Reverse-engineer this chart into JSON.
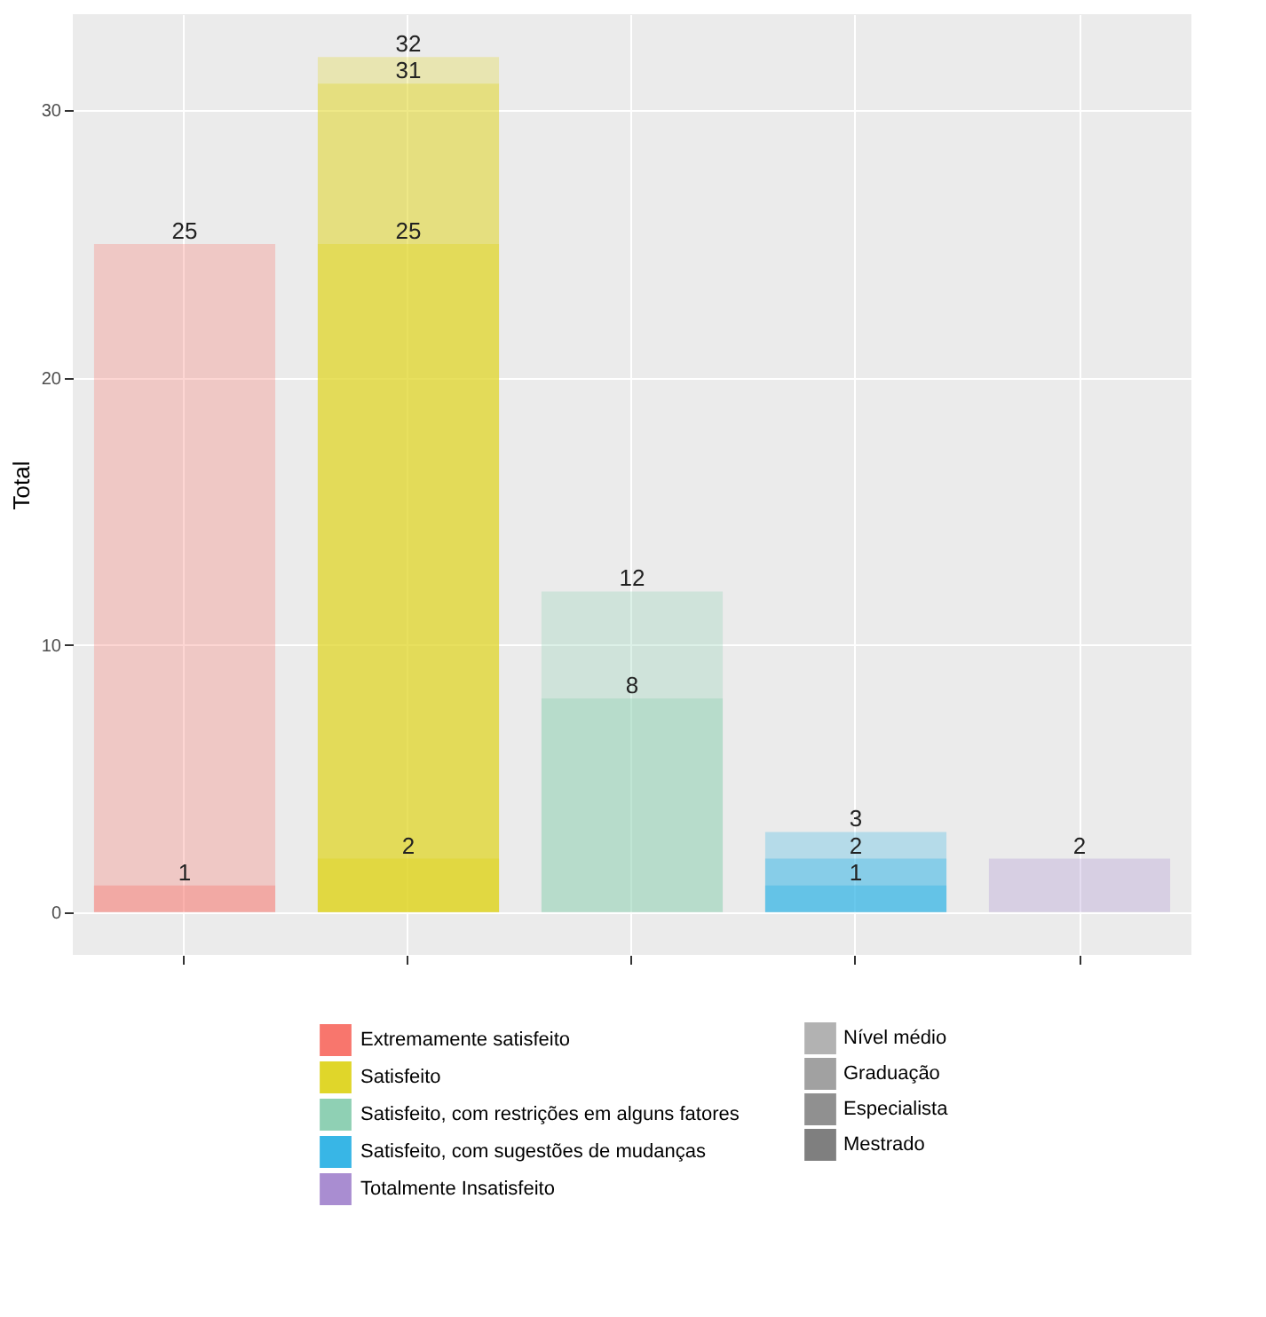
{
  "chart_data": {
    "type": "bar",
    "categories": [
      null,
      null,
      null,
      null,
      null
    ],
    "ylabel": "Total",
    "ylim": [
      -1.6,
      33.6
    ],
    "yticks": [
      0,
      10,
      20,
      30
    ],
    "grid": true,
    "tick_labels": "y",
    "data_labels": true,
    "annotations": [
      "Extremamente satisfeito",
      "Satisfeito",
      "Satisfeito, com restrições em alguns fatores",
      "Satisfeito, com sugestões de mudanças",
      "Totalmente Insatisfeito",
      "Nível médio",
      "Graduação",
      "Especialista",
      "Mestrado"
    ],
    "series": [
      {
        "colors": [
          "#f8766d",
          "#e0d62a",
          "#8fd0b4",
          "#38b6e6",
          "#a98dd1"
        ],
        "values": [
          25,
          32,
          12,
          3,
          2
        ]
      },
      {
        "colors": [
          "#f8766d",
          "#e0d62a",
          "#8fd0b4",
          "#38b6e6",
          null
        ],
        "values": [
          1,
          31,
          8,
          2,
          null
        ]
      },
      {
        "colors": [
          null,
          "#e0d62a",
          null,
          "#38b6e6",
          null
        ],
        "values": [
          null,
          25,
          null,
          1,
          null
        ]
      },
      {
        "colors": [
          null,
          "#e0d62a",
          null,
          null,
          null
        ],
        "values": [
          null,
          2,
          null,
          null,
          null
        ]
      }
    ]
  }
}
